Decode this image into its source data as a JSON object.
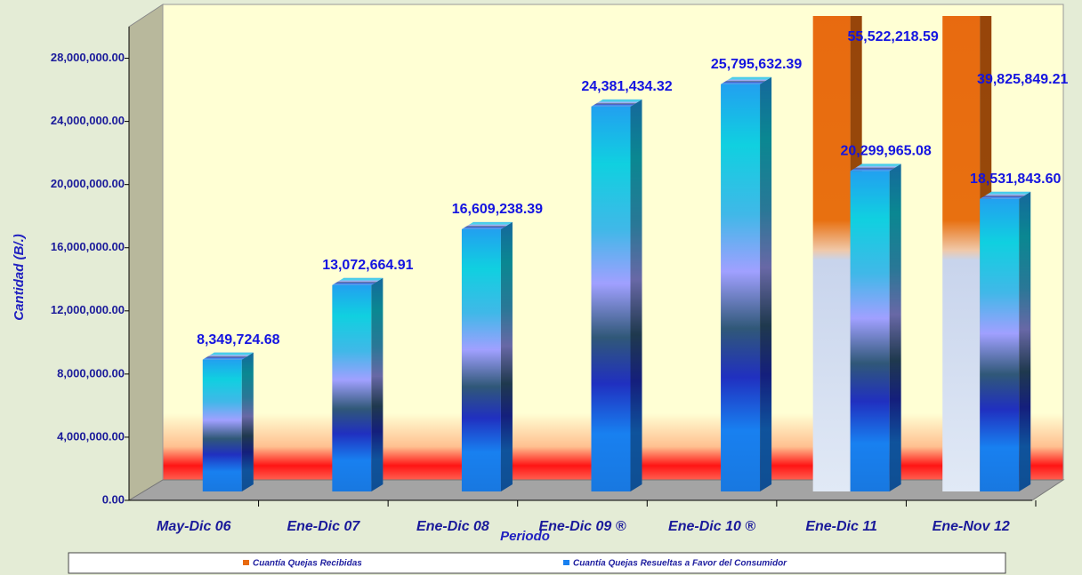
{
  "chart_data": {
    "type": "bar",
    "x_label": "Periodo",
    "y_label": "Cantidad (B/.)",
    "categories": [
      "May-Dic 06",
      "Ene-Dic 07",
      "Ene-Dic 08",
      "Ene-Dic 09 ®",
      "Ene-Dic 10 ®",
      "Ene-Dic 11",
      "Ene-Nov 12"
    ],
    "series": [
      {
        "name": "Cuantía Quejas Recibidas",
        "color": "#e86a10",
        "values": [
          null,
          null,
          null,
          null,
          null,
          55522218.59,
          39825849.21
        ],
        "value_labels": [
          null,
          null,
          null,
          null,
          null,
          "55,522,218.59",
          "39,825,849.21"
        ]
      },
      {
        "name": "Cuantía Quejas Resueltas a Favor del Consumidor",
        "color": "#1880f0",
        "values": [
          8349724.68,
          13072664.91,
          16609238.39,
          24381434.32,
          25795632.39,
          20299965.08,
          18531843.6
        ],
        "value_labels": [
          "8,349,724.68",
          "13,072,664.91",
          "16,609,238.39",
          "24,381,434.32",
          "25,795,632.39",
          "20,299,965.08",
          "18,531,843.60"
        ]
      }
    ],
    "ylim": [
      0,
      30000000
    ],
    "yticks": [
      {
        "value": 0,
        "label": "0.00"
      },
      {
        "value": 4000000,
        "label": "4,000,000.00"
      },
      {
        "value": 8000000,
        "label": "8,000,000.00"
      },
      {
        "value": 12000000,
        "label": "12,000,000.00"
      },
      {
        "value": 16000000,
        "label": "16,000,000.00"
      },
      {
        "value": 20000000,
        "label": "20,000,000.00"
      },
      {
        "value": 24000000,
        "label": "24,000,000.00"
      },
      {
        "value": 28000000,
        "label": "28,000,000.00"
      }
    ],
    "grid": false
  }
}
